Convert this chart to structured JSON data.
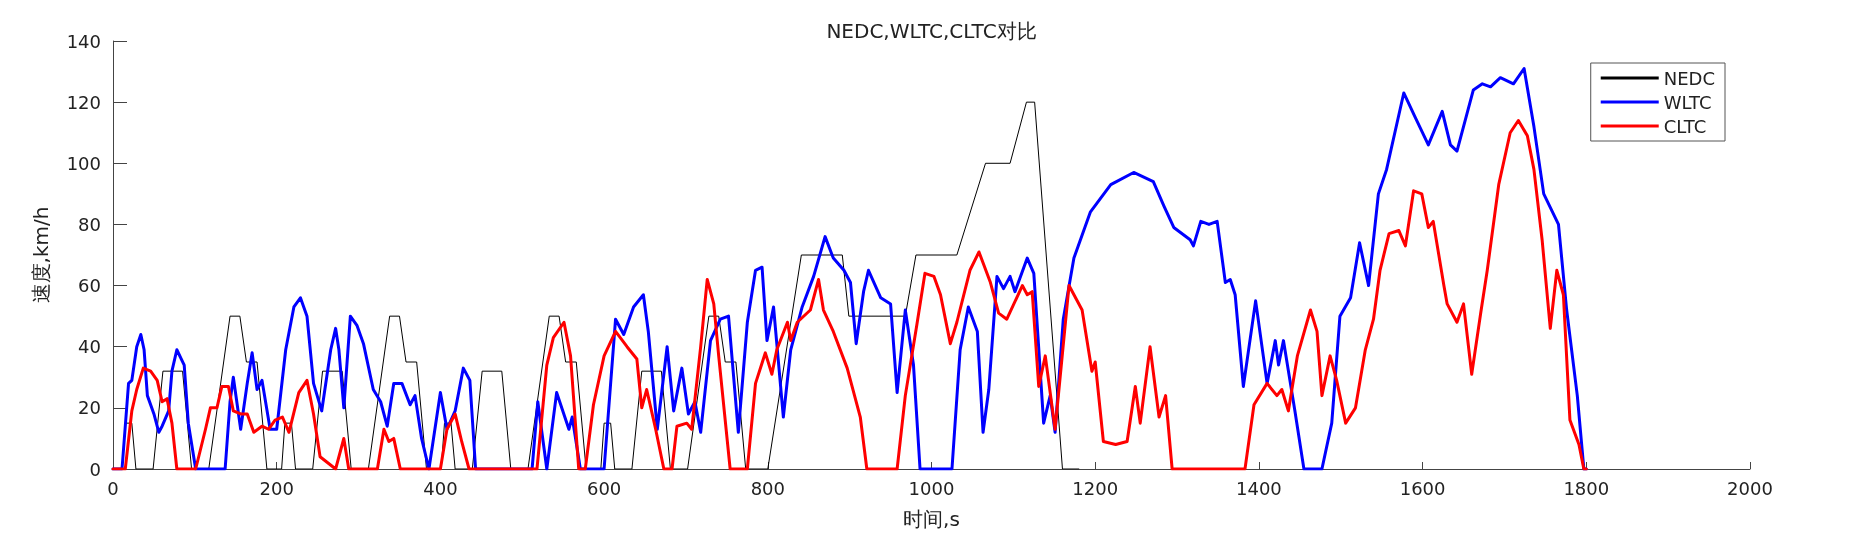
{
  "chart_data": {
    "type": "line",
    "title": "NEDC,WLTC,CLTC对比",
    "xlabel": "时间,s",
    "ylabel": "速度,km/h",
    "xlim": [
      0,
      2000
    ],
    "xticks": [
      0,
      200,
      400,
      600,
      800,
      1000,
      1200,
      1400,
      1600,
      1800,
      2000
    ],
    "ylim": [
      0,
      140
    ],
    "yticks": [
      0,
      20,
      40,
      60,
      80,
      100,
      120,
      140
    ],
    "grid": false,
    "legend": "top right",
    "marker": "none",
    "line_style": "solid",
    "series": [
      {
        "name": "NEDC",
        "color": "#000000",
        "x": [
          0,
          11,
          15,
          23,
          28,
          49,
          61,
          85,
          96,
          117,
          143,
          155,
          163,
          176,
          188,
          206,
          210,
          218,
          223,
          244,
          256,
          280,
          291,
          312,
          338,
          350,
          358,
          371,
          383,
          401,
          405,
          413,
          418,
          439,
          451,
          475,
          486,
          507,
          533,
          545,
          553,
          566,
          578,
          596,
          600,
          608,
          613,
          634,
          646,
          670,
          681,
          702,
          728,
          740,
          748,
          761,
          773,
          800,
          841,
          891,
          899,
          968,
          981,
          1031,
          1066,
          1096,
          1116,
          1126,
          1160,
          1180
        ],
        "values": [
          0,
          0,
          15,
          15,
          0,
          0,
          32,
          32,
          0,
          0,
          50,
          50,
          35,
          35,
          0,
          0,
          15,
          15,
          0,
          0,
          32,
          32,
          0,
          0,
          50,
          50,
          35,
          35,
          0,
          0,
          15,
          15,
          0,
          0,
          32,
          32,
          0,
          0,
          50,
          50,
          35,
          35,
          0,
          0,
          15,
          15,
          0,
          0,
          32,
          32,
          0,
          0,
          50,
          50,
          35,
          35,
          0,
          0,
          70,
          70,
          50,
          50,
          70,
          70,
          100,
          100,
          120,
          120,
          0,
          0
        ]
      },
      {
        "name": "WLTC",
        "color": "#0000ff",
        "x": [
          0,
          11,
          19,
          23,
          29,
          34,
          38,
          42,
          50,
          56,
          60,
          68,
          72,
          78,
          87,
          92,
          101,
          137,
          143,
          147,
          156,
          164,
          170,
          176,
          182,
          192,
          200,
          211,
          221,
          229,
          237,
          245,
          255,
          266,
          272,
          276,
          282,
          290,
          298,
          306,
          318,
          327,
          335,
          343,
          353,
          363,
          369,
          377,
          386,
          400,
          408,
          418,
          428,
          436,
          443,
          512,
          519,
          530,
          542,
          557,
          561,
          571,
          600,
          614,
          624,
          636,
          648,
          654,
          665,
          677,
          685,
          695,
          703,
          711,
          718,
          730,
          742,
          752,
          764,
          775,
          785,
          793,
          799,
          807,
          819,
          828,
          842,
          856,
          870,
          880,
          893,
          901,
          908,
          917,
          923,
          938,
          950,
          958,
          968,
          978,
          986,
          1025,
          1035,
          1045,
          1056,
          1063,
          1070,
          1080,
          1088,
          1096,
          1102,
          1117,
          1125,
          1137,
          1145,
          1151,
          1161,
          1174,
          1194,
          1219,
          1247,
          1271,
          1284,
          1296,
          1316,
          1320,
          1329,
          1339,
          1349,
          1359,
          1365,
          1371,
          1381,
          1396,
          1410,
          1420,
          1424,
          1430,
          1444,
          1455,
          1477,
          1489,
          1499,
          1512,
          1523,
          1534,
          1546,
          1556,
          1577,
          1591,
          1607,
          1624,
          1634,
          1642,
          1662,
          1673,
          1683,
          1695,
          1711,
          1724,
          1736,
          1748,
          1766,
          1776,
          1789,
          1797,
          1800
        ],
        "values": [
          0,
          0,
          28,
          29,
          40,
          44,
          39,
          24,
          18,
          12,
          14,
          19,
          32,
          39,
          34,
          15,
          0,
          0,
          22,
          30,
          13,
          28,
          38,
          26,
          29,
          13,
          13,
          39,
          53,
          56,
          50,
          28,
          19,
          39,
          46,
          39,
          20,
          50,
          47,
          41,
          26,
          22,
          14,
          28,
          28,
          21,
          24,
          10,
          0,
          25,
          13,
          19,
          33,
          29,
          0,
          0,
          22,
          0,
          25,
          13,
          17,
          0,
          0,
          49,
          44,
          53,
          57,
          45,
          13,
          40,
          19,
          33,
          18,
          22,
          12,
          42,
          49,
          50,
          12,
          48,
          65,
          66,
          42,
          53,
          17,
          39,
          53,
          63,
          76,
          69,
          65,
          61,
          41,
          58,
          65,
          56,
          54,
          25,
          52,
          34,
          0,
          0,
          39,
          53,
          45,
          12,
          26,
          63,
          59,
          63,
          58,
          69,
          64,
          15,
          24,
          12,
          49,
          69,
          84,
          93,
          97,
          94,
          86,
          79,
          75,
          73,
          81,
          80,
          81,
          61,
          62,
          57,
          27,
          55,
          28,
          42,
          34,
          42,
          19,
          0,
          0,
          15,
          50,
          56,
          74,
          60,
          90,
          98,
          123,
          115,
          106,
          117,
          106,
          104,
          124,
          126,
          125,
          128,
          126,
          131,
          112,
          90,
          80,
          52,
          24,
          0,
          0
        ]
      },
      {
        "name": "CLTC",
        "color": "#ff0000",
        "x": [
          0,
          15,
          23,
          29,
          37,
          46,
          54,
          60,
          66,
          72,
          78,
          101,
          113,
          119,
          127,
          133,
          141,
          147,
          156,
          164,
          172,
          182,
          190,
          198,
          207,
          215,
          227,
          237,
          245,
          253,
          272,
          282,
          288,
          323,
          331,
          337,
          343,
          351,
          400,
          408,
          418,
          426,
          435,
          518,
          530,
          538,
          551,
          559,
          569,
          577,
          587,
          600,
          614,
          628,
          640,
          646,
          652,
          663,
          673,
          683,
          689,
          701,
          707,
          718,
          726,
          734,
          740,
          754,
          775,
          785,
          797,
          805,
          811,
          824,
          828,
          836,
          852,
          862,
          868,
          880,
          897,
          913,
          921,
          958,
          968,
          982,
          992,
          1003,
          1011,
          1023,
          1031,
          1047,
          1058,
          1072,
          1082,
          1092,
          1111,
          1117,
          1123,
          1131,
          1139,
          1151,
          1168,
          1184,
          1196,
          1200,
          1210,
          1225,
          1239,
          1249,
          1255,
          1267,
          1278,
          1286,
          1294,
          1383,
          1394,
          1410,
          1422,
          1428,
          1436,
          1447,
          1463,
          1471,
          1477,
          1487,
          1495,
          1506,
          1518,
          1530,
          1540,
          1548,
          1559,
          1571,
          1579,
          1589,
          1599,
          1607,
          1613,
          1626,
          1630,
          1642,
          1650,
          1660,
          1671,
          1679,
          1693,
          1707,
          1717,
          1728,
          1736,
          1746,
          1756,
          1764,
          1772,
          1780,
          1791,
          1797,
          1800
        ],
        "values": [
          0,
          0,
          19,
          26,
          33,
          32,
          29,
          22,
          23,
          15,
          0,
          0,
          13,
          20,
          20,
          27,
          27,
          19,
          18,
          18,
          12,
          14,
          13,
          16,
          17,
          12,
          25,
          29,
          18,
          4,
          0,
          10,
          0,
          0,
          13,
          9,
          10,
          0,
          0,
          13,
          18,
          9,
          0,
          0,
          34,
          43,
          48,
          37,
          0,
          0,
          21,
          37,
          45,
          40,
          36,
          20,
          26,
          13,
          0,
          0,
          14,
          15,
          13,
          40,
          62,
          54,
          37,
          0,
          0,
          28,
          38,
          31,
          39,
          48,
          42,
          48,
          52,
          62,
          52,
          45,
          33,
          17,
          0,
          0,
          24,
          47,
          64,
          63,
          57,
          41,
          48,
          65,
          71,
          61,
          51,
          49,
          60,
          57,
          58,
          27,
          37,
          13,
          60,
          52,
          32,
          35,
          9,
          8,
          9,
          27,
          15,
          40,
          17,
          24,
          0,
          0,
          21,
          28,
          24,
          26,
          19,
          37,
          52,
          45,
          24,
          37,
          29,
          15,
          20,
          39,
          49,
          65,
          77,
          78,
          73,
          91,
          90,
          79,
          81,
          60,
          54,
          48,
          54,
          31,
          51,
          65,
          93,
          110,
          114,
          109,
          98,
          75,
          46,
          65,
          57,
          16,
          8,
          0,
          0
        ]
      }
    ]
  }
}
